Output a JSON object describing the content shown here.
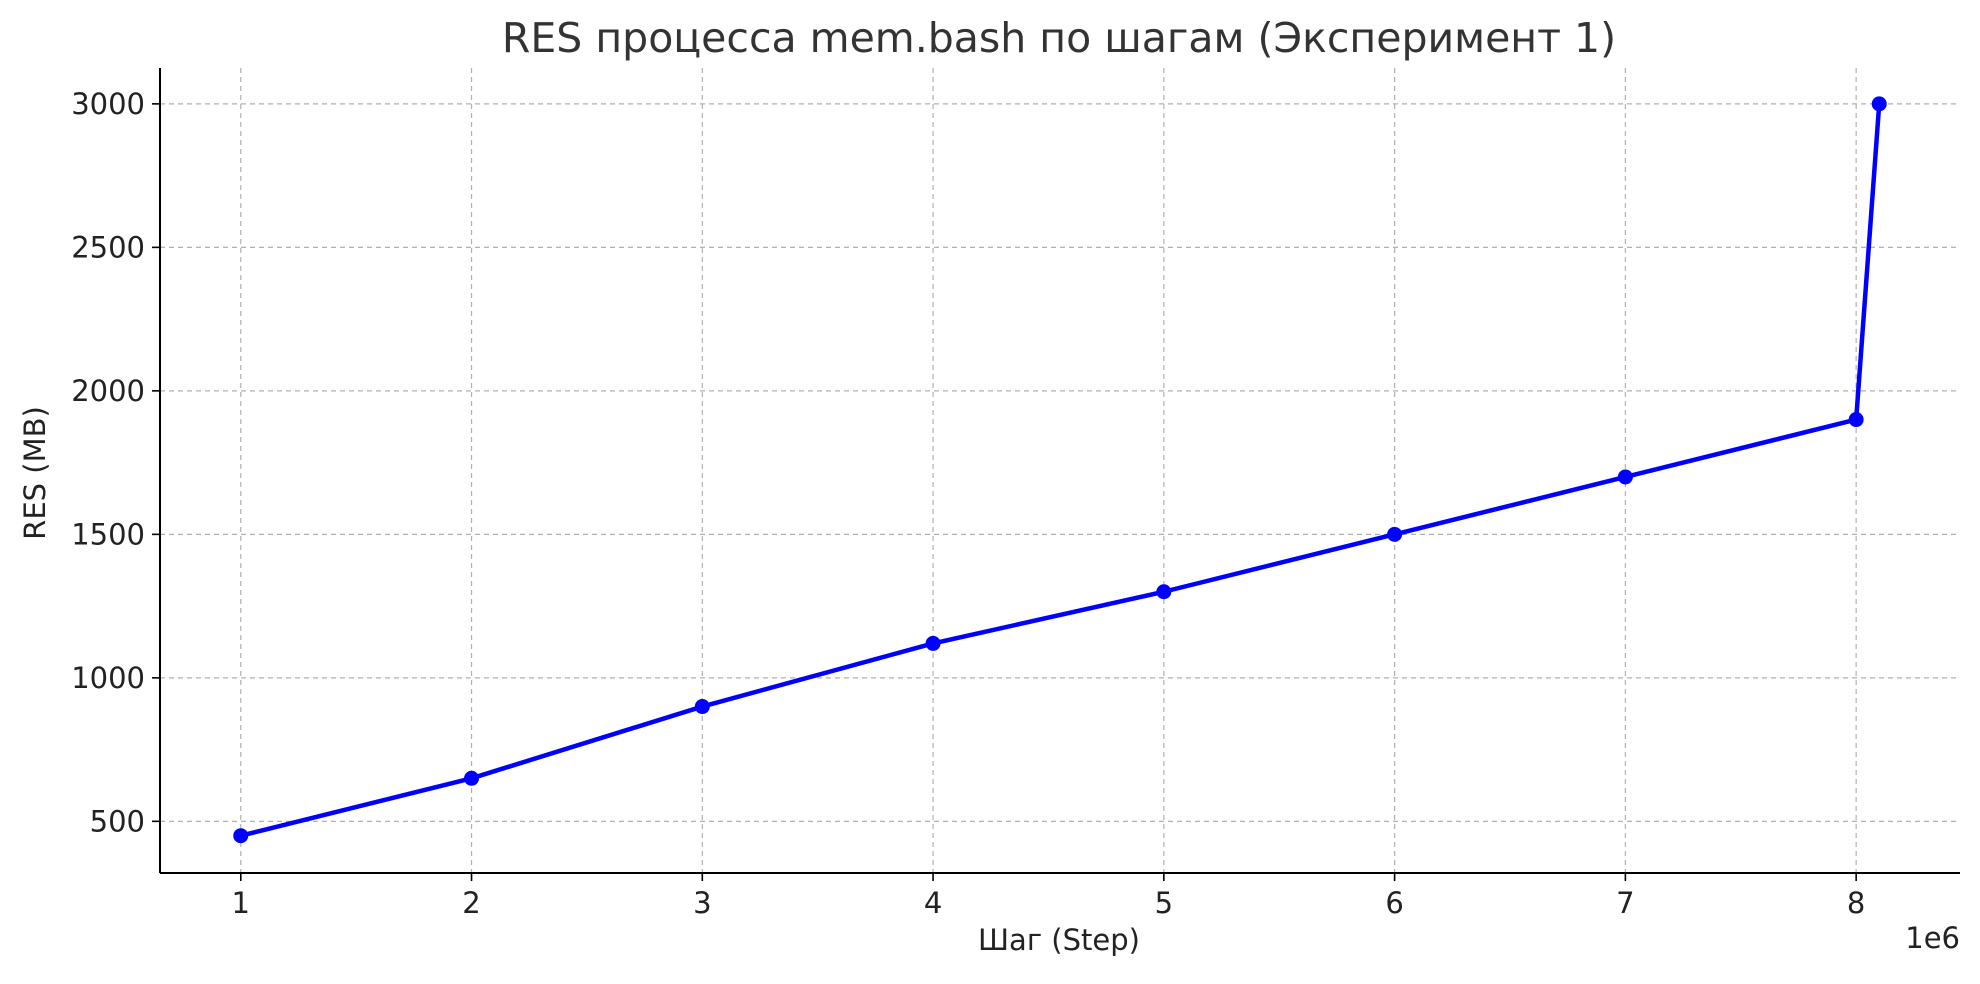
{
  "chart_data": {
    "type": "line",
    "title": "RES процесса mem.bash по шагам (Эксперимент 1)",
    "xlabel": "Шаг (Step)",
    "ylabel": "RES (MB)",
    "x_offset_label": "1e6",
    "x_scale": 1000000,
    "xlim": [
      650000,
      8450000
    ],
    "ylim": [
      320,
      3125
    ],
    "x_ticks": [
      1000000,
      2000000,
      3000000,
      4000000,
      5000000,
      6000000,
      7000000,
      8000000
    ],
    "x_tick_labels": [
      "1",
      "2",
      "3",
      "4",
      "5",
      "6",
      "7",
      "8"
    ],
    "y_ticks": [
      500,
      1000,
      1500,
      2000,
      2500,
      3000
    ],
    "y_tick_labels": [
      "500",
      "1000",
      "1500",
      "2000",
      "2500",
      "3000"
    ],
    "grid": true,
    "series": [
      {
        "color": "#0000ff",
        "x": [
          1000000,
          2000000,
          3000000,
          4000000,
          5000000,
          6000000,
          7000000,
          8000000,
          8100000
        ],
        "y": [
          450,
          650,
          900,
          1120,
          1300,
          1500,
          1700,
          1900,
          3000
        ]
      }
    ]
  }
}
